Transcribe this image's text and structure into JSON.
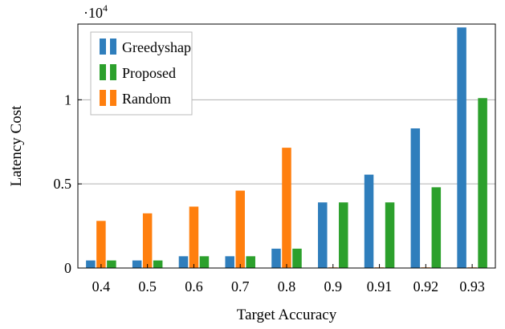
{
  "chart_data": {
    "type": "bar",
    "xlabel": "Target Accuracy",
    "ylabel": "Latency Cost",
    "exponent_label_base": "·10",
    "exponent_label_power": "4",
    "categories": [
      "0.4",
      "0.5",
      "0.6",
      "0.7",
      "0.8",
      "0.9",
      "0.91",
      "0.92",
      "0.93"
    ],
    "ylim": [
      0,
      14500
    ],
    "yticks": [
      {
        "value": 0,
        "label": "0"
      },
      {
        "value": 5000,
        "label": "0.5"
      },
      {
        "value": 10000,
        "label": "1"
      }
    ],
    "grid": true,
    "legend_position": "top-left",
    "series": [
      {
        "name": "Greedyshap",
        "color": "#2f7ebc",
        "values": [
          450,
          450,
          700,
          700,
          1150,
          3900,
          5550,
          8300,
          14300
        ]
      },
      {
        "name": "Random",
        "color": "#ff7f0e",
        "values": [
          2800,
          3250,
          3650,
          4600,
          7150,
          30,
          30,
          30,
          30
        ]
      },
      {
        "name": "Proposed",
        "color": "#2ca02c",
        "values": [
          450,
          450,
          700,
          700,
          1150,
          3900,
          3900,
          4800,
          10100
        ]
      }
    ],
    "legend_order": [
      "Greedyshap",
      "Proposed",
      "Random"
    ]
  }
}
